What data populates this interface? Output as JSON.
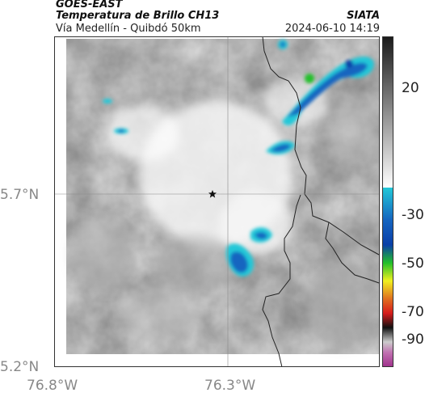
{
  "header": {
    "title": "GOES-EAST",
    "subtitle": "Temperatura de Brillo CH13",
    "route": "Vía Medellín - Quibdó 50km",
    "org": "SIATA",
    "timestamp": "2024-06-10 14:19"
  },
  "axes": {
    "lat_ticks": [
      "5.7°N",
      "5.2°N"
    ],
    "lon_ticks": [
      "76.8°W",
      "76.3°W"
    ]
  },
  "colorbar": {
    "ticks": [
      "20",
      "-30",
      "-50",
      "-70",
      "-90"
    ],
    "colors": {
      "warm_top": "#1a1a1a",
      "warm_bottom": "#ffffff",
      "cyan": "#22c8d8",
      "blue": "#0a3fa8",
      "green": "#22c02a",
      "yellow": "#f0f020",
      "red": "#d81c1c",
      "black": "#111111",
      "magenta": "#a0308c"
    }
  },
  "marker": {
    "icon": "star-icon"
  }
}
